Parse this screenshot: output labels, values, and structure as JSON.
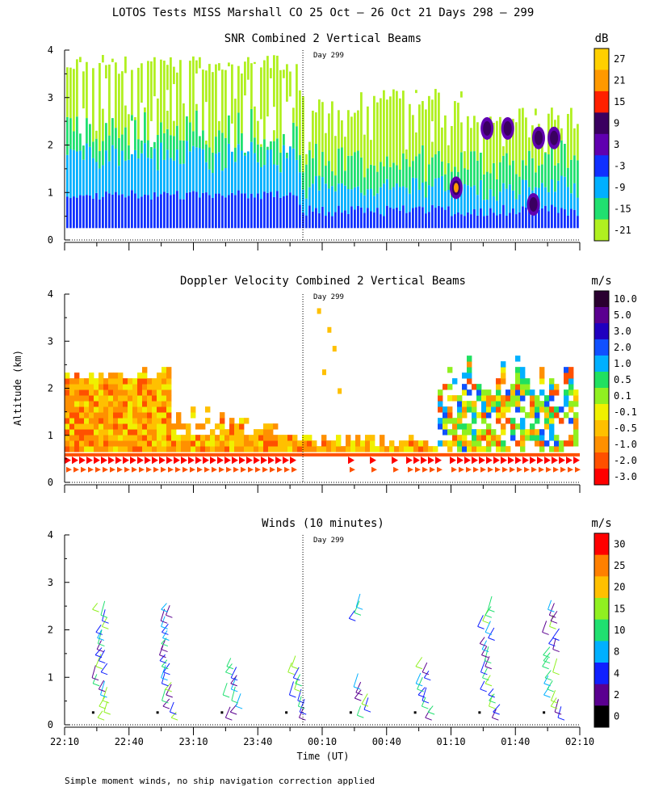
{
  "figure": {
    "title": "LOTOS Tests MISS Marshall CO  25 Oct – 26 Oct 21 Days 298 – 299",
    "footnote": "Simple moment winds, no ship navigation correction applied",
    "ylabel": "Altitude (km)",
    "xlabel": "Time (UT)",
    "day_marker": "Day 299"
  },
  "chart_data": [
    {
      "type": "heatmap",
      "title": "SNR Combined 2 Vertical Beams",
      "unit": "dB",
      "ylim": [
        0,
        4
      ],
      "yticks": [
        "0",
        "1",
        "2",
        "3",
        "4"
      ],
      "xticks": [
        "22:10",
        "22:40",
        "23:10",
        "23:40",
        "00:10",
        "00:40",
        "01:10",
        "01:40",
        "02:10"
      ],
      "colorbar": {
        "labels": [
          "27",
          "21",
          "15",
          "9",
          "3",
          "-3",
          "-9",
          "-15",
          "-21"
        ],
        "colors": [
          "#ffd000",
          "#ff9900",
          "#ff2000",
          "#3a0060",
          "#6000b0",
          "#1030ff",
          "#00b0ff",
          "#20e070",
          "#b0f020"
        ]
      },
      "day_marker_time": "00:01"
    },
    {
      "type": "heatmap",
      "title": "Doppler Velocity Combined 2 Vertical Beams",
      "unit": "m/s",
      "ylim": [
        0,
        4
      ],
      "yticks": [
        "0",
        "1",
        "2",
        "3",
        "4"
      ],
      "colorbar": {
        "labels": [
          "10.0",
          "5.0",
          "3.0",
          "2.0",
          "1.0",
          "0.5",
          "0.1",
          "-0.1",
          "-0.5",
          "-1.0",
          "-2.0",
          "-3.0"
        ],
        "colors": [
          "#2a0030",
          "#5a0090",
          "#2000c0",
          "#1050ff",
          "#00b0ff",
          "#20e060",
          "#90f020",
          "#f0f000",
          "#ffc000",
          "#ff9000",
          "#ff5000",
          "#ff0000"
        ]
      },
      "day_marker_time": "00:01"
    },
    {
      "type": "scatter",
      "title": "Winds (10 minutes)",
      "unit": "m/s",
      "ylim": [
        0,
        4
      ],
      "yticks": [
        "0",
        "1",
        "2",
        "3",
        "4"
      ],
      "xticks": [
        "22:10",
        "22:40",
        "23:10",
        "23:40",
        "00:10",
        "00:40",
        "01:10",
        "01:40",
        "02:10"
      ],
      "colorbar": {
        "labels": [
          "30",
          "25",
          "20",
          "15",
          "10",
          "8",
          "4",
          "2",
          "0"
        ],
        "colors": [
          "#ff0000",
          "#ff8000",
          "#ffc000",
          "#90f020",
          "#20e070",
          "#00b0ff",
          "#1020ff",
          "#5a0090",
          "#000000"
        ]
      },
      "day_marker_time": "00:01",
      "profile_times": [
        "22:25",
        "22:55",
        "23:25",
        "23:55",
        "00:25",
        "00:55",
        "01:25",
        "01:55"
      ]
    }
  ]
}
